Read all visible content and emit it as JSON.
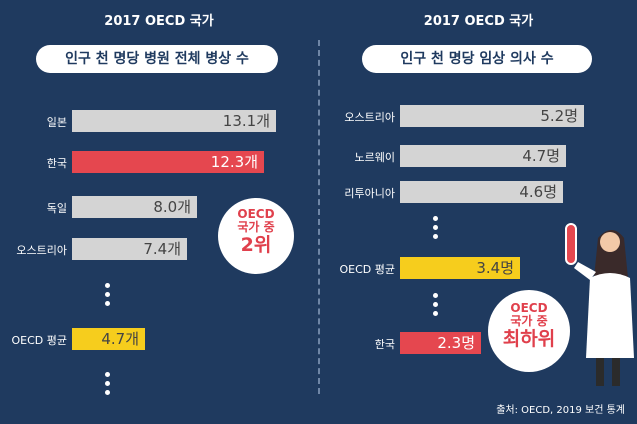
{
  "colors": {
    "background": "#1f3a5f",
    "gray_bar": "#d4d4d4",
    "red_bar": "#e5474f",
    "yellow_bar": "#f6cd1d",
    "text_dark": "#444444"
  },
  "left": {
    "year": "2017 OECD 국가",
    "title": "인구 천 명당 병원 전체 병상 수",
    "bubble_line1": "OECD",
    "bubble_line2": "국가 중",
    "bubble_line3": "2위"
  },
  "right": {
    "year": "2017 OECD 국가",
    "title": "인구 천 명당 임상 의사 수",
    "bubble_line1": "OECD",
    "bubble_line2": "국가 중",
    "bubble_line3": "최하위"
  },
  "source": "출처: OECD, 2019 보건 통계",
  "chart_data": [
    {
      "type": "bar",
      "title": "인구 천 명당 병원 전체 병상 수",
      "categories": [
        "일본",
        "한국",
        "독일",
        "오스트리아",
        "OECD 평균"
      ],
      "values": [
        13.1,
        12.3,
        8.0,
        7.4,
        4.7
      ],
      "value_labels": [
        "13.1개",
        "12.3개",
        "8.0개",
        "7.4개",
        "4.7개"
      ],
      "highlight": [
        "gray",
        "red",
        "gray",
        "gray",
        "yellow"
      ]
    },
    {
      "type": "bar",
      "title": "인구 천 명당 임상 의사 수",
      "categories": [
        "오스트리아",
        "노르웨이",
        "리투아니아",
        "OECD 평균",
        "한국"
      ],
      "values": [
        5.2,
        4.7,
        4.6,
        3.4,
        2.3
      ],
      "value_labels": [
        "5.2명",
        "4.7명",
        "4.6명",
        "3.4명",
        "2.3명"
      ],
      "highlight": [
        "gray",
        "gray",
        "gray",
        "yellow",
        "red"
      ]
    }
  ]
}
